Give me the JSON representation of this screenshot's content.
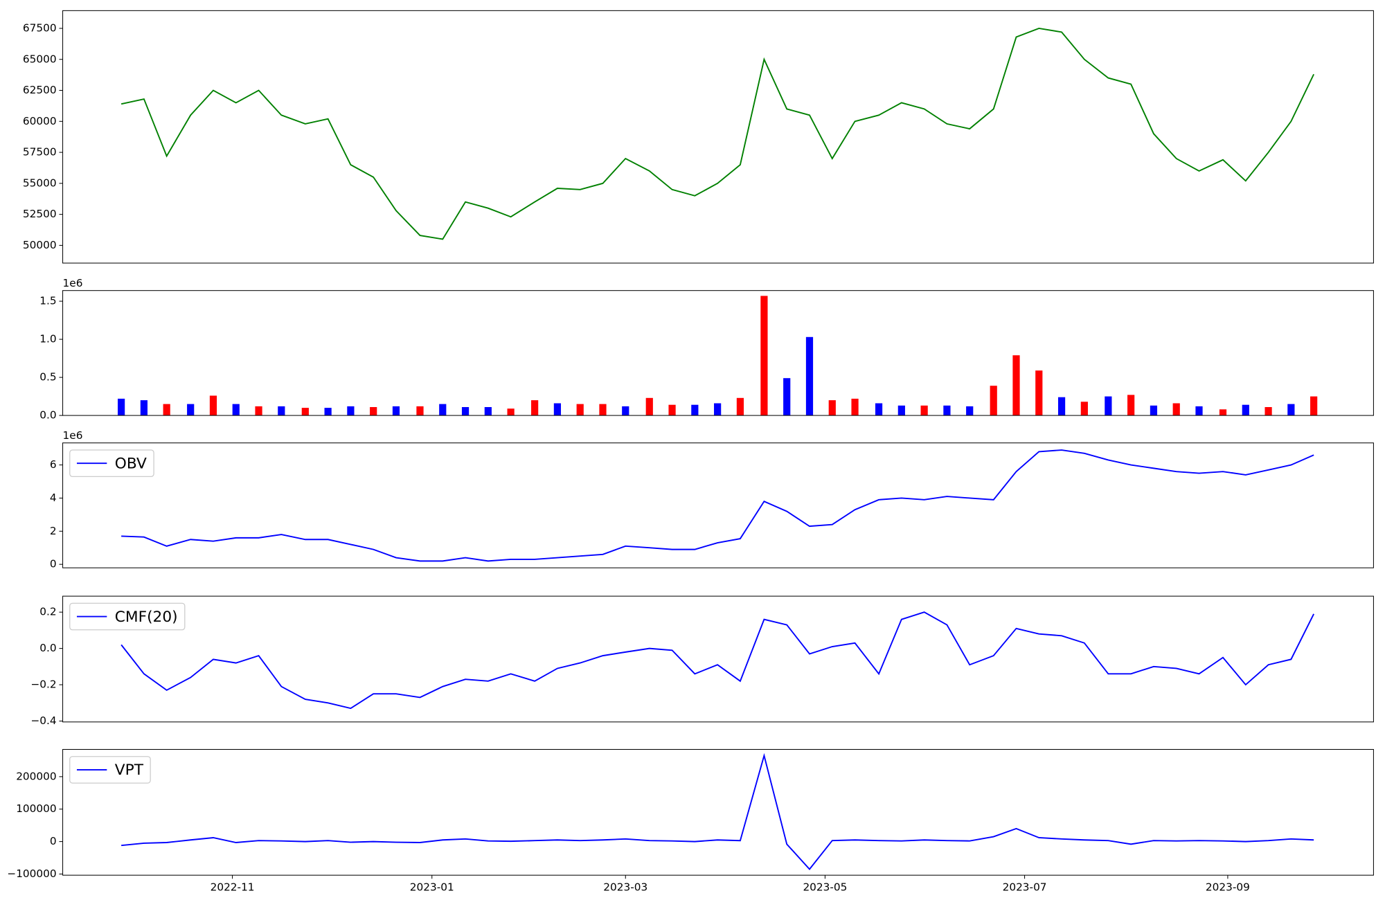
{
  "chart_data": {
    "type": "multi",
    "x": [
      2022.74,
      2022.759,
      2022.778,
      2022.798,
      2022.817,
      2022.836,
      2022.855,
      2022.874,
      2022.894,
      2022.913,
      2022.932,
      2022.951,
      2022.97,
      2022.99,
      2023.009,
      2023.028,
      2023.047,
      2023.066,
      2023.086,
      2023.105,
      2023.124,
      2023.143,
      2023.162,
      2023.182,
      2023.201,
      2023.22,
      2023.239,
      2023.258,
      2023.278,
      2023.297,
      2023.316,
      2023.335,
      2023.354,
      2023.374,
      2023.393,
      2023.412,
      2023.431,
      2023.45,
      2023.47,
      2023.489,
      2023.508,
      2023.527,
      2023.546,
      2023.566,
      2023.585,
      2023.604,
      2023.623,
      2023.642,
      2023.662,
      2023.681,
      2023.7,
      2023.719,
      2023.738
    ],
    "xlim": [
      2022.691,
      2023.788
    ],
    "xticks": [
      {
        "value": 2022.833,
        "label": "2022-11"
      },
      {
        "value": 2023.0,
        "label": "2023-01"
      },
      {
        "value": 2023.162,
        "label": "2023-03"
      },
      {
        "value": 2023.329,
        "label": "2023-05"
      },
      {
        "value": 2023.496,
        "label": "2023-07"
      },
      {
        "value": 2023.666,
        "label": "2023-09"
      }
    ],
    "panels": [
      {
        "type": "line",
        "series": [
          {
            "color": "#008000",
            "values": [
              61400,
              61800,
              57200,
              60500,
              62500,
              61500,
              62500,
              60500,
              59800,
              60200,
              56500,
              55500,
              52800,
              50800,
              50500,
              53500,
              53000,
              52300,
              53500,
              54600,
              54500,
              55000,
              57000,
              56000,
              54500,
              54000,
              55000,
              56500,
              65000,
              61000,
              60500,
              57000,
              60000,
              60500,
              61500,
              61000,
              59800,
              59400,
              61000,
              66800,
              67500,
              67200,
              65000,
              63500,
              63000,
              59000,
              57000,
              56000,
              56900,
              55200,
              57500,
              60000,
              63800
            ]
          }
        ],
        "ylim": [
          48570,
          68930
        ],
        "yticks": [
          50000,
          52500,
          55000,
          57500,
          60000,
          62500,
          65000,
          67500
        ]
      },
      {
        "type": "bar",
        "values": [
          220000,
          200000,
          150000,
          150000,
          260000,
          150000,
          120000,
          120000,
          100000,
          100000,
          120000,
          110000,
          120000,
          120000,
          150000,
          110000,
          110000,
          90000,
          200000,
          160000,
          150000,
          150000,
          120000,
          230000,
          140000,
          140000,
          160000,
          230000,
          1570000,
          490000,
          1030000,
          200000,
          220000,
          160000,
          130000,
          130000,
          130000,
          120000,
          390000,
          790000,
          590000,
          240000,
          180000,
          250000,
          270000,
          130000,
          160000,
          120000,
          80000,
          140000,
          110000,
          150000,
          250000
        ],
        "colors": [
          "#0000ff",
          "#0000ff",
          "#ff0000",
          "#0000ff",
          "#ff0000",
          "#0000ff",
          "#ff0000",
          "#0000ff",
          "#ff0000",
          "#0000ff",
          "#0000ff",
          "#ff0000",
          "#0000ff",
          "#ff0000",
          "#0000ff",
          "#0000ff",
          "#0000ff",
          "#ff0000",
          "#ff0000",
          "#0000ff",
          "#ff0000",
          "#ff0000",
          "#0000ff",
          "#ff0000",
          "#ff0000",
          "#0000ff",
          "#0000ff",
          "#ff0000",
          "#ff0000",
          "#0000ff",
          "#0000ff",
          "#ff0000",
          "#ff0000",
          "#0000ff",
          "#0000ff",
          "#ff0000",
          "#0000ff",
          "#0000ff",
          "#ff0000",
          "#ff0000",
          "#ff0000",
          "#0000ff",
          "#ff0000",
          "#0000ff",
          "#ff0000",
          "#0000ff",
          "#ff0000",
          "#0000ff",
          "#ff0000",
          "#0000ff",
          "#ff0000",
          "#0000ff",
          "#ff0000"
        ],
        "ylim": [
          0,
          1640000
        ],
        "yticks": [
          {
            "value": 0,
            "label": "0.0"
          },
          {
            "value": 500000,
            "label": "0.5"
          },
          {
            "value": 1000000,
            "label": "1.0"
          },
          {
            "value": 1500000,
            "label": "1.5"
          }
        ],
        "offset_label": "1e6"
      },
      {
        "type": "line",
        "series": [
          {
            "name": "OBV",
            "color": "#0000ff",
            "values": [
              1700000,
              1650000,
              1100000,
              1500000,
              1400000,
              1600000,
              1600000,
              1800000,
              1500000,
              1500000,
              1200000,
              900000,
              400000,
              200000,
              200000,
              400000,
              200000,
              300000,
              300000,
              400000,
              500000,
              600000,
              1100000,
              1000000,
              900000,
              900000,
              1300000,
              1550000,
              3800000,
              3200000,
              2300000,
              2400000,
              3300000,
              3900000,
              4000000,
              3900000,
              4100000,
              4000000,
              3900000,
              5600000,
              6800000,
              6900000,
              6700000,
              6300000,
              6000000,
              5800000,
              5600000,
              5500000,
              5600000,
              5400000,
              5700000,
              6000000,
              6600000
            ]
          }
        ],
        "ylim": [
          -210000,
          7330000
        ],
        "yticks": [
          {
            "value": 0,
            "label": "0"
          },
          {
            "value": 2000000,
            "label": "2"
          },
          {
            "value": 4000000,
            "label": "4"
          },
          {
            "value": 6000000,
            "label": "6"
          }
        ],
        "offset_label": "1e6",
        "legend": "upper left"
      },
      {
        "type": "line",
        "series": [
          {
            "name": "CMF(20)",
            "color": "#0000ff",
            "values": [
              0.02,
              -0.14,
              -0.23,
              -0.16,
              -0.06,
              -0.08,
              -0.04,
              -0.21,
              -0.28,
              -0.3,
              -0.33,
              -0.25,
              -0.25,
              -0.27,
              -0.21,
              -0.17,
              -0.18,
              -0.14,
              -0.18,
              -0.11,
              -0.08,
              -0.04,
              -0.02,
              0.0,
              -0.01,
              -0.14,
              -0.09,
              -0.18,
              0.16,
              0.13,
              -0.03,
              0.01,
              0.03,
              -0.14,
              0.16,
              0.2,
              0.13,
              -0.09,
              -0.04,
              0.11,
              0.08,
              0.07,
              0.03,
              -0.14,
              -0.14,
              -0.1,
              -0.11,
              -0.14,
              -0.05,
              -0.2,
              -0.09,
              -0.06,
              0.19
            ]
          }
        ],
        "ylim": [
          -0.405,
          0.288
        ],
        "yticks": [
          {
            "value": -0.4,
            "label": "−0.4"
          },
          {
            "value": -0.2,
            "label": "−0.2"
          },
          {
            "value": 0,
            "label": "0.0"
          },
          0.2
        ],
        "legend": "upper left"
      },
      {
        "type": "line",
        "series": [
          {
            "name": "VPT",
            "color": "#0000ff",
            "values": [
              -12000,
              -5000,
              -3000,
              5000,
              12000,
              -3000,
              3000,
              2000,
              0,
              3000,
              -2000,
              0,
              -2000,
              -3000,
              5000,
              8000,
              2000,
              1000,
              3000,
              5000,
              3000,
              5000,
              8000,
              3000,
              2000,
              0,
              5000,
              3000,
              265000,
              -8000,
              -85000,
              3000,
              5000,
              3000,
              2000,
              5000,
              3000,
              2000,
              15000,
              40000,
              12000,
              8000,
              5000,
              3000,
              -8000,
              3000,
              2000,
              3000,
              2000,
              0,
              3000,
              8000,
              5000
            ]
          }
        ],
        "ylim": [
          -103600,
          284000
        ],
        "yticks": [
          {
            "value": -100000,
            "label": "−100000"
          },
          0,
          100000,
          200000
        ],
        "legend": "upper left"
      }
    ]
  }
}
